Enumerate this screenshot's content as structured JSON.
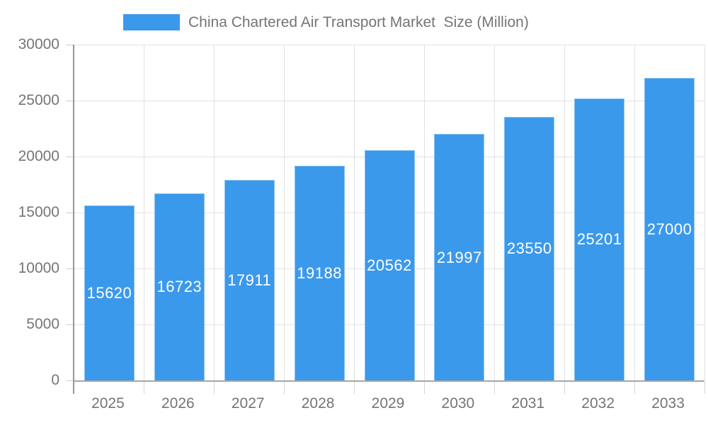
{
  "chart_data": {
    "type": "bar",
    "title": "China Chartered Air Transport Market  Size (Million)",
    "legend": [
      "China Chartered Air Transport Market  Size (Million)"
    ],
    "legend_position": "top",
    "categories": [
      "2025",
      "2026",
      "2027",
      "2028",
      "2029",
      "2030",
      "2031",
      "2032",
      "2033"
    ],
    "values": [
      15620,
      16723,
      17911,
      19188,
      20562,
      21997,
      23550,
      25201,
      27000
    ],
    "xlabel": "",
    "ylabel": "",
    "ylim": [
      0,
      30000
    ],
    "y_ticks": [
      0,
      5000,
      10000,
      15000,
      20000,
      25000,
      30000
    ],
    "grid": true,
    "bar_color": "#3B99EC",
    "bar_label_color": "#FFFFFF",
    "axis_text_color": "#757575"
  }
}
